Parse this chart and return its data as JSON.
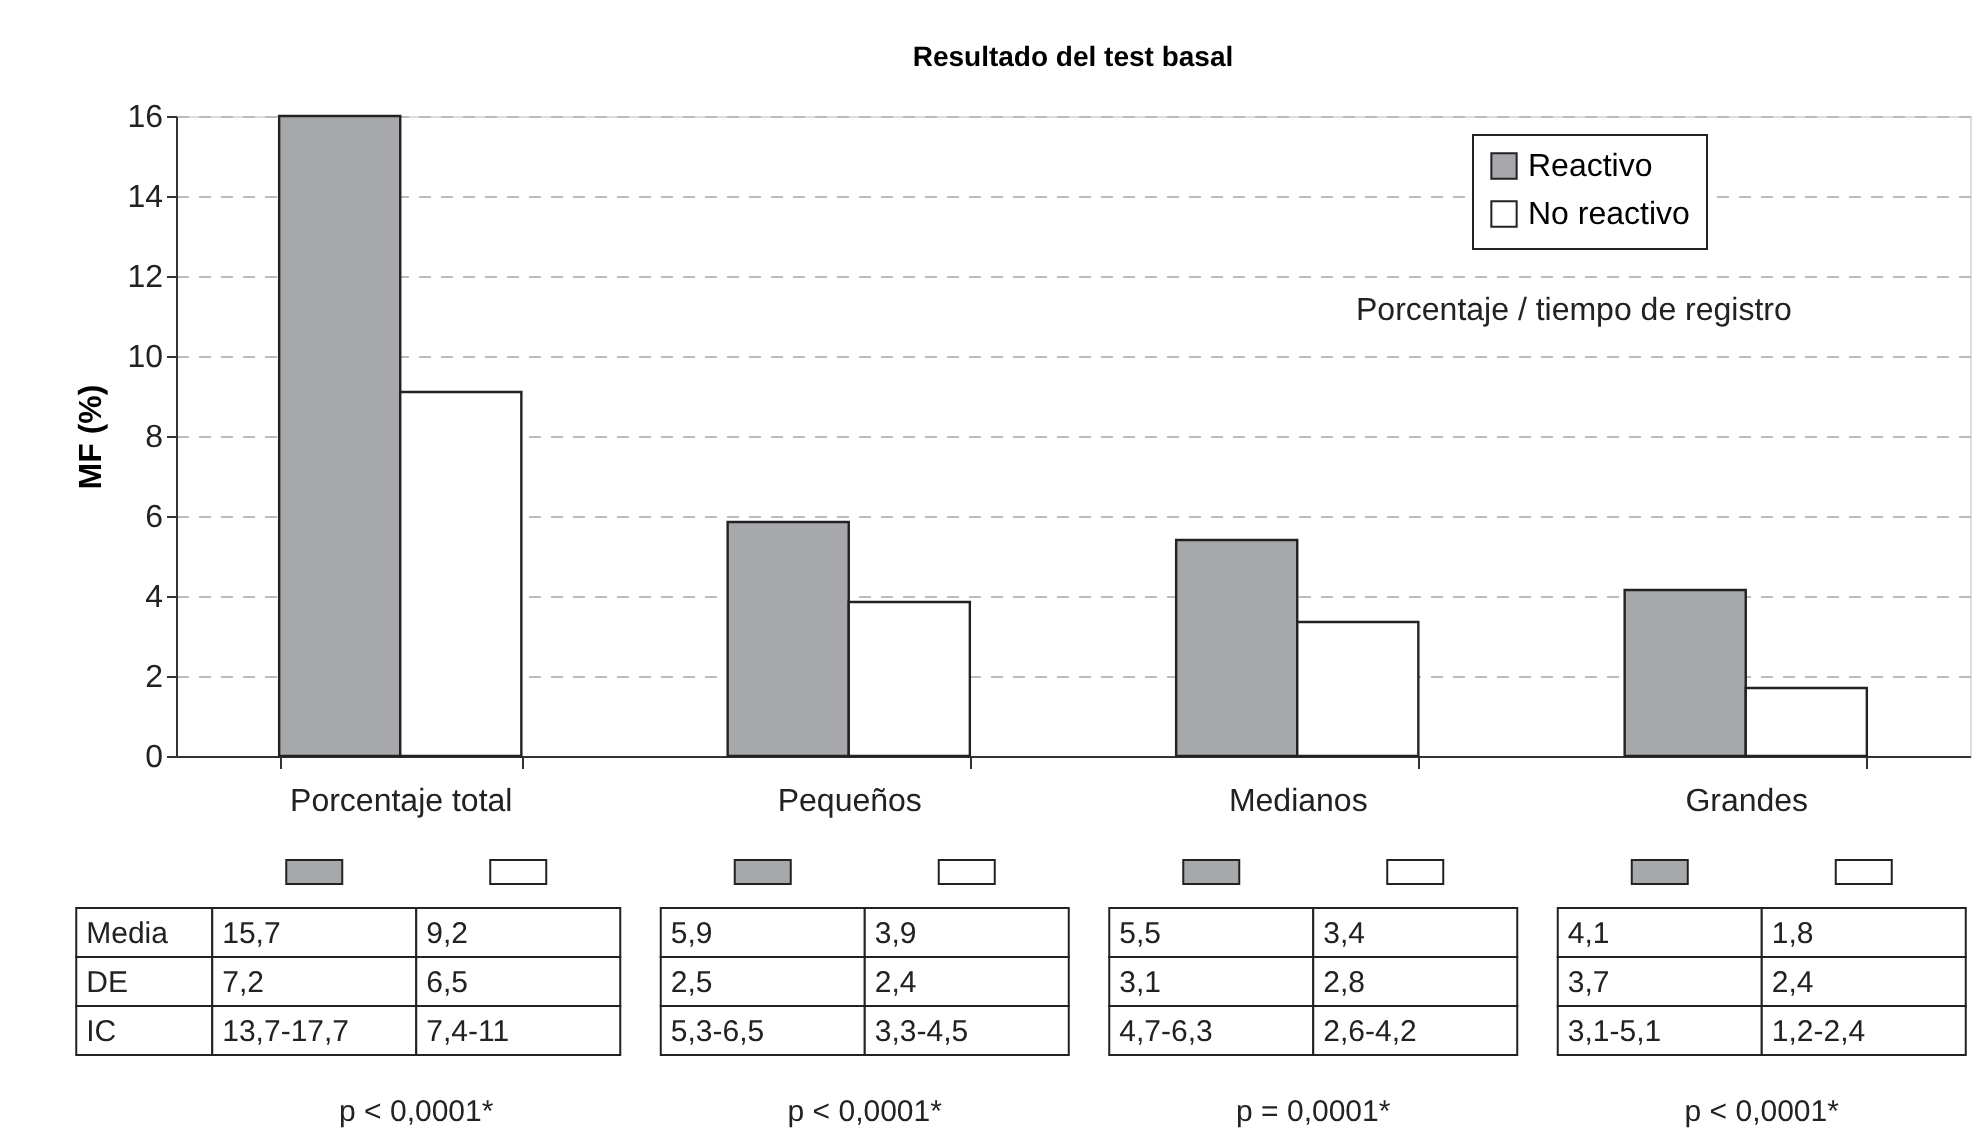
{
  "chart_data": {
    "type": "bar",
    "title": "Resultado del test basal",
    "ylabel": "MF (%)",
    "categories": [
      "Porcentaje total",
      "Pequeños",
      "Medianos",
      "Grandes"
    ],
    "series": [
      {
        "name": "Reactivo",
        "color": "#a7a8ab",
        "values": [
          16,
          5.85,
          5.4,
          4.15
        ]
      },
      {
        "name": "No reactivo",
        "color": "#ffffff",
        "values": [
          9.1,
          3.85,
          3.35,
          1.7
        ]
      }
    ],
    "ylim": [
      0,
      16
    ],
    "yticks": [
      0,
      2,
      4,
      6,
      8,
      10,
      12,
      14,
      16
    ],
    "grid": "y",
    "legend": "top right",
    "annotations": [
      "Porcentaje / tiempo de registro",
      "Media",
      "DE",
      "IC",
      "15,7",
      "9,2",
      "7,2",
      "6,5",
      "13,7-17,7",
      "7,4-11",
      "5,9",
      "3,9",
      "2,5",
      "2,4",
      "5,3-6,5",
      "3,3-4,5",
      "5,5",
      "3,4",
      "3,1",
      "2,8",
      "4,7-6,3",
      "2,6-4,2",
      "4,1",
      "1,8",
      "3,7",
      "2,4",
      "3,1-5,1",
      "1,2-2,4",
      "p < 0,0001*",
      "p < 0,0001*",
      "p = 0,0001*",
      "p < 0,0001*"
    ]
  }
}
